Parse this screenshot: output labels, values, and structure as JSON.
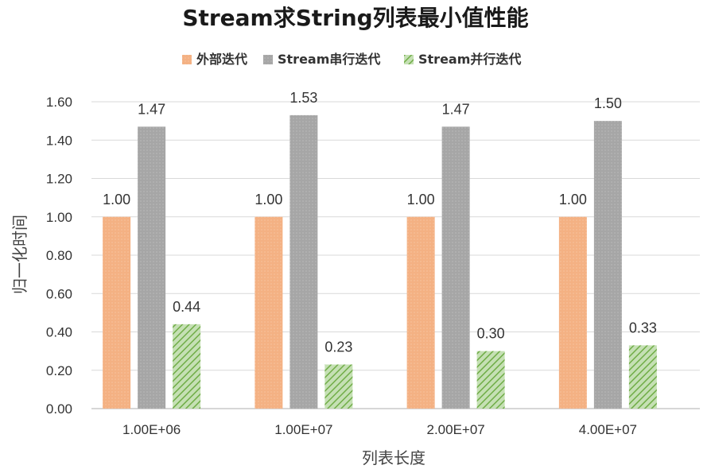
{
  "chart_data": {
    "type": "bar",
    "title": "Stream求String列表最小值性能",
    "xlabel": "列表长度",
    "ylabel": "归一化时间",
    "categories": [
      "1.00E+06",
      "1.00E+07",
      "2.00E+07",
      "4.00E+07"
    ],
    "series": [
      {
        "name": "外部迭代",
        "color": "#f4b183",
        "values": [
          1.0,
          1.0,
          1.0,
          1.0
        ],
        "labels": [
          "1.00",
          "1.00",
          "1.00",
          "1.00"
        ]
      },
      {
        "name": "Stream串行迭代",
        "color": "#a6a6a6",
        "values": [
          1.47,
          1.53,
          1.47,
          1.5
        ],
        "labels": [
          "1.47",
          "1.53",
          "1.47",
          "1.50"
        ]
      },
      {
        "name": "Stream并行迭代",
        "color": "#a9d18e",
        "values": [
          0.44,
          0.23,
          0.3,
          0.33
        ],
        "labels": [
          "0.44",
          "0.23",
          "0.30",
          "0.33"
        ]
      }
    ],
    "ylim": [
      0,
      1.6
    ],
    "yticks": [
      "0.00",
      "0.20",
      "0.40",
      "0.60",
      "0.80",
      "1.00",
      "1.20",
      "1.40",
      "1.60"
    ],
    "grid": true,
    "legend_position": "top"
  }
}
